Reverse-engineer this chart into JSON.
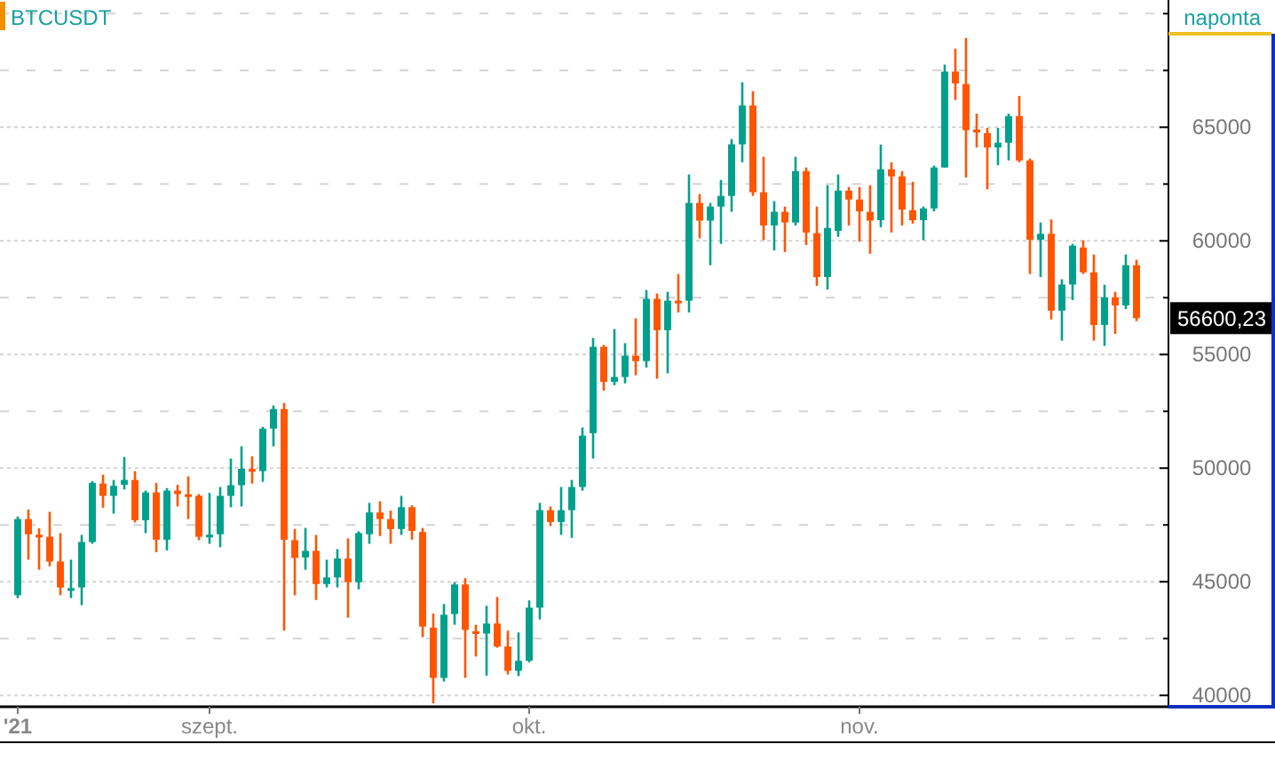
{
  "chart_data": {
    "type": "candlestick",
    "title": "BTCUSDT",
    "subtitle": "naponta",
    "x": [
      "2021-08-14",
      "2021-08-15",
      "2021-08-16",
      "2021-08-17",
      "2021-08-18",
      "2021-08-19",
      "2021-08-20",
      "2021-08-21",
      "2021-08-22",
      "2021-08-23",
      "2021-08-24",
      "2021-08-25",
      "2021-08-26",
      "2021-08-27",
      "2021-08-28",
      "2021-08-29",
      "2021-08-30",
      "2021-08-31",
      "2021-09-01",
      "2021-09-02",
      "2021-09-03",
      "2021-09-04",
      "2021-09-05",
      "2021-09-06",
      "2021-09-07",
      "2021-09-08",
      "2021-09-09",
      "2021-09-10",
      "2021-09-11",
      "2021-09-12",
      "2021-09-13",
      "2021-09-14",
      "2021-09-15",
      "2021-09-16",
      "2021-09-17",
      "2021-09-18",
      "2021-09-19",
      "2021-09-20",
      "2021-09-21",
      "2021-09-22",
      "2021-09-23",
      "2021-09-24",
      "2021-09-25",
      "2021-09-26",
      "2021-09-27",
      "2021-09-28",
      "2021-09-29",
      "2021-09-30",
      "2021-10-01",
      "2021-10-02",
      "2021-10-03",
      "2021-10-04",
      "2021-10-05",
      "2021-10-06",
      "2021-10-07",
      "2021-10-08",
      "2021-10-09",
      "2021-10-10",
      "2021-10-11",
      "2021-10-12",
      "2021-10-13",
      "2021-10-14",
      "2021-10-15",
      "2021-10-16",
      "2021-10-17",
      "2021-10-18",
      "2021-10-19",
      "2021-10-20",
      "2021-10-21",
      "2021-10-22",
      "2021-10-23",
      "2021-10-24",
      "2021-10-25",
      "2021-10-26",
      "2021-10-27",
      "2021-10-28",
      "2021-10-29",
      "2021-10-30",
      "2021-10-31",
      "2021-11-01",
      "2021-11-02",
      "2021-11-03",
      "2021-11-04",
      "2021-11-05",
      "2021-11-06",
      "2021-11-07",
      "2021-11-08",
      "2021-11-09",
      "2021-11-10",
      "2021-11-11",
      "2021-11-12",
      "2021-11-13",
      "2021-11-14",
      "2021-11-15",
      "2021-11-16",
      "2021-11-17",
      "2021-11-18",
      "2021-11-19",
      "2021-11-20",
      "2021-11-21",
      "2021-11-22",
      "2021-11-23",
      "2021-11-24",
      "2021-11-25",
      "2021-11-26",
      "2021-11-27"
    ],
    "ohlc": [
      [
        44410,
        47870,
        44280,
        47760
      ],
      [
        47760,
        48180,
        45970,
        47090
      ],
      [
        47070,
        47350,
        45530,
        47050
      ],
      [
        46980,
        48080,
        45680,
        45890
      ],
      [
        45890,
        47140,
        44410,
        44750
      ],
      [
        44700,
        45970,
        44280,
        44720
      ],
      [
        44750,
        47060,
        43970,
        46750
      ],
      [
        46750,
        49430,
        46670,
        49350
      ],
      [
        49320,
        49710,
        48260,
        48780
      ],
      [
        48780,
        49480,
        48000,
        49220
      ],
      [
        49270,
        50490,
        49060,
        49480
      ],
      [
        49480,
        49870,
        47610,
        47710
      ],
      [
        47710,
        49010,
        47140,
        48930
      ],
      [
        48930,
        49350,
        46300,
        46850
      ],
      [
        46850,
        49120,
        46380,
        49010
      ],
      [
        49010,
        49270,
        48310,
        48860
      ],
      [
        48850,
        49640,
        47760,
        48830
      ],
      [
        48780,
        48860,
        46830,
        46980
      ],
      [
        47050,
        48910,
        46670,
        47070
      ],
      [
        47090,
        49170,
        46520,
        48780
      ],
      [
        48780,
        50420,
        48280,
        49250
      ],
      [
        49250,
        50960,
        48310,
        49970
      ],
      [
        49960,
        50520,
        49320,
        49940
      ],
      [
        49870,
        51820,
        49400,
        51740
      ],
      [
        51740,
        52760,
        50960,
        52600
      ],
      [
        52600,
        52860,
        42850,
        46850
      ],
      [
        46830,
        47320,
        44410,
        46050
      ],
      [
        46070,
        47370,
        45530,
        46360
      ],
      [
        46360,
        47060,
        44200,
        44900
      ],
      [
        44900,
        45970,
        44750,
        45190
      ],
      [
        45190,
        46440,
        44750,
        46020
      ],
      [
        46020,
        46910,
        43420,
        44980
      ],
      [
        44980,
        47220,
        44670,
        47140
      ],
      [
        47090,
        48470,
        46670,
        48050
      ],
      [
        48050,
        48540,
        47010,
        47760
      ],
      [
        47760,
        48130,
        46670,
        47320
      ],
      [
        47320,
        48780,
        47060,
        48280
      ],
      [
        48280,
        48360,
        46850,
        47240
      ],
      [
        47190,
        47370,
        42560,
        43030
      ],
      [
        42980,
        43600,
        39650,
        40770
      ],
      [
        40770,
        44020,
        40610,
        43550
      ],
      [
        43580,
        44980,
        43110,
        44880
      ],
      [
        44880,
        45160,
        40770,
        42880
      ],
      [
        42820,
        43110,
        41710,
        42720
      ],
      [
        42720,
        43940,
        40870,
        43160
      ],
      [
        43160,
        44330,
        42100,
        42150
      ],
      [
        42150,
        42850,
        40920,
        41080
      ],
      [
        41080,
        42770,
        40850,
        41520
      ],
      [
        41520,
        44180,
        41450,
        43860
      ],
      [
        43860,
        48470,
        43340,
        48150
      ],
      [
        48150,
        48310,
        47450,
        47630
      ],
      [
        47630,
        49170,
        47060,
        48150
      ],
      [
        48150,
        49480,
        46930,
        49170
      ],
      [
        49170,
        51790,
        49010,
        51430
      ],
      [
        51540,
        55730,
        50420,
        55340
      ],
      [
        55340,
        55420,
        53410,
        53800
      ],
      [
        53800,
        56120,
        53650,
        54010
      ],
      [
        54010,
        55500,
        53730,
        54950
      ],
      [
        54950,
        56590,
        54090,
        54710
      ],
      [
        54710,
        57840,
        54430,
        57450
      ],
      [
        57450,
        57680,
        53930,
        56070
      ],
      [
        56070,
        57760,
        54170,
        57370
      ],
      [
        57370,
        58540,
        56850,
        57320
      ],
      [
        57370,
        62920,
        56850,
        61670
      ],
      [
        61670,
        62060,
        60110,
        60890
      ],
      [
        60890,
        61670,
        58930,
        61510
      ],
      [
        61510,
        62680,
        59870,
        61980
      ],
      [
        61980,
        64480,
        61280,
        64250
      ],
      [
        64250,
        66980,
        63460,
        65960
      ],
      [
        65960,
        66590,
        61980,
        62140
      ],
      [
        62140,
        63700,
        60030,
        60680
      ],
      [
        60680,
        61750,
        59580,
        61280
      ],
      [
        61280,
        61510,
        59510,
        60810
      ],
      [
        60810,
        63700,
        60680,
        63070
      ],
      [
        63070,
        63230,
        59820,
        60370
      ],
      [
        60340,
        61510,
        58020,
        58410
      ],
      [
        58410,
        62450,
        57860,
        60570
      ],
      [
        60440,
        62920,
        60180,
        62210
      ],
      [
        62210,
        62370,
        60680,
        61820
      ],
      [
        61820,
        62370,
        59970,
        61300
      ],
      [
        61280,
        62450,
        59430,
        60890
      ],
      [
        60910,
        64240,
        60600,
        63150
      ],
      [
        63150,
        63460,
        60370,
        62840
      ],
      [
        62840,
        63070,
        60680,
        61380
      ],
      [
        61350,
        62600,
        60760,
        60910
      ],
      [
        60910,
        61510,
        60030,
        61430
      ],
      [
        61430,
        63310,
        61300,
        63230
      ],
      [
        63230,
        67760,
        63230,
        67450
      ],
      [
        67450,
        68460,
        66200,
        66930
      ],
      [
        66900,
        68930,
        62790,
        64870
      ],
      [
        64900,
        65600,
        64110,
        64770
      ],
      [
        64740,
        64970,
        62270,
        64110
      ],
      [
        64110,
        64970,
        63330,
        64320
      ],
      [
        64320,
        65600,
        63540,
        65490
      ],
      [
        65490,
        66380,
        63460,
        63540
      ],
      [
        63540,
        63620,
        58540,
        60050
      ],
      [
        60050,
        60810,
        58410,
        60310
      ],
      [
        60310,
        60940,
        56540,
        56930
      ],
      [
        56930,
        58310,
        55610,
        58080
      ],
      [
        58080,
        59870,
        57400,
        59790
      ],
      [
        59710,
        60030,
        58540,
        58620
      ],
      [
        58620,
        59400,
        55610,
        56300
      ],
      [
        56300,
        58070,
        55380,
        57520
      ],
      [
        57520,
        57760,
        55910,
        57160
      ],
      [
        57160,
        59400,
        57000,
        58930
      ],
      [
        58930,
        59170,
        56470,
        56600.23
      ]
    ],
    "xlim": [
      "2021-08-12T08:00",
      "2021-11-30"
    ],
    "xticks": [
      {
        "value": "2021-08-14",
        "label": "'21"
      },
      {
        "value": "2021-09-01",
        "label": "szept."
      },
      {
        "value": "2021-10-01",
        "label": "okt."
      },
      {
        "value": "2021-11-01",
        "label": "nov."
      }
    ],
    "ylim": [
      39500,
      70600
    ],
    "yticks": [
      40000,
      {
        "value": 42500,
        "label": null
      },
      45000,
      {
        "value": 47500,
        "label": null
      },
      50000,
      {
        "value": 52500,
        "label": null
      },
      55000,
      {
        "value": 57500,
        "label": null
      },
      60000,
      {
        "value": 62500,
        "label": null
      },
      65000,
      {
        "value": 67500,
        "label": null
      },
      {
        "value": 70000,
        "label": null
      }
    ],
    "grid": "y",
    "annotations": [
      "56600,23"
    ],
    "colors": [
      "#00a08c",
      "#ff5500",
      "#ff5500",
      "#ff5500",
      "#ff5500",
      "#00a08c",
      "#00a08c",
      "#00a08c",
      "#ff5500",
      "#00a08c",
      "#00a08c",
      "#ff5500",
      "#00a08c",
      "#ff5500",
      "#00a08c",
      "#ff5500",
      "#ff5500",
      "#ff5500",
      "#00a08c",
      "#00a08c",
      "#00a08c",
      "#00a08c",
      "#ff5500",
      "#00a08c",
      "#00a08c",
      "#ff5500",
      "#ff5500",
      "#00a08c",
      "#ff5500",
      "#00a08c",
      "#00a08c",
      "#ff5500",
      "#00a08c",
      "#00a08c",
      "#ff5500",
      "#ff5500",
      "#00a08c",
      "#ff5500",
      "#ff5500",
      "#ff5500",
      "#00a08c",
      "#00a08c",
      "#ff5500",
      "#ff5500",
      "#00a08c",
      "#ff5500",
      "#ff5500",
      "#00a08c",
      "#00a08c",
      "#00a08c",
      "#ff5500",
      "#00a08c",
      "#00a08c",
      "#00a08c",
      "#00a08c",
      "#ff5500",
      "#00a08c",
      "#00a08c",
      "#ff5500",
      "#00a08c",
      "#ff5500",
      "#00a08c",
      "#ff5500",
      "#00a08c",
      "#ff5500",
      "#00a08c",
      "#00a08c",
      "#00a08c",
      "#00a08c",
      "#ff5500",
      "#ff5500",
      "#00a08c",
      "#ff5500",
      "#00a08c",
      "#ff5500",
      "#ff5500",
      "#00a08c",
      "#00a08c",
      "#ff5500",
      "#ff5500",
      "#ff5500",
      "#00a08c",
      "#ff5500",
      "#ff5500",
      "#ff5500",
      "#00a08c",
      "#00a08c",
      "#00a08c",
      "#ff5500",
      "#ff5500",
      "#ff5500",
      "#ff5500",
      "#00a08c",
      "#00a08c",
      "#ff5500",
      "#ff5500",
      "#00a08c",
      "#ff5500",
      "#00a08c",
      "#00a08c",
      "#ff5500",
      "#ff5500",
      "#00a08c",
      "#ff5500",
      "#00a08c",
      "#ff5500"
    ]
  }
}
